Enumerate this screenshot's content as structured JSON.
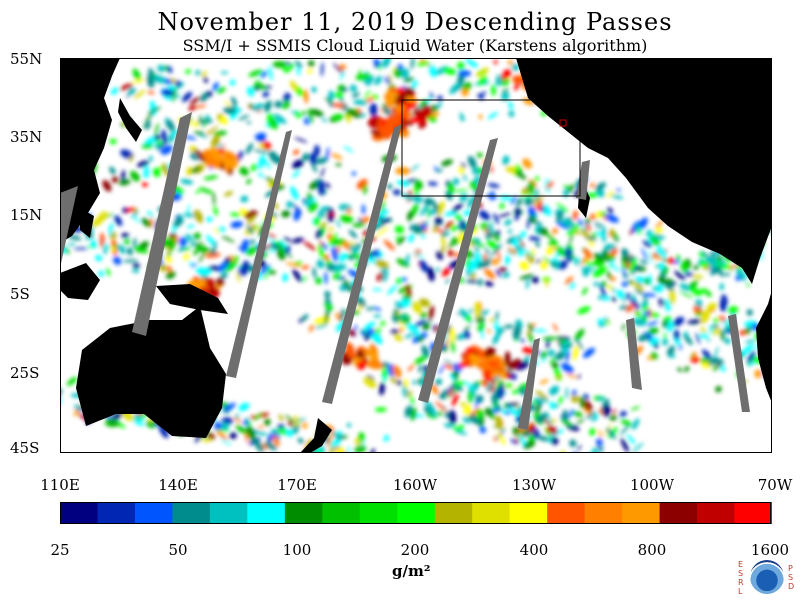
{
  "title": "November 11, 2019  Descending Passes",
  "subtitle": "SSM/I + SSMIS Cloud Liquid Water (Karstens algorithm)",
  "lat_labels": [
    "55N",
    "35N",
    "15N",
    "5S",
    "25S",
    "45S"
  ],
  "lon_labels": [
    "110E",
    "140E",
    "170E",
    "160W",
    "130W",
    "100W",
    "70W"
  ],
  "colorbar": {
    "labels": [
      "25",
      "50",
      "100",
      "200",
      "400",
      "800",
      "1600"
    ],
    "units": "g/m²",
    "colors": [
      "#000080",
      "#0026b3",
      "#0055ff",
      "#008c8c",
      "#00c0c0",
      "#00ffff",
      "#008c00",
      "#00c000",
      "#00e000",
      "#00ff00",
      "#b3b300",
      "#e0e000",
      "#ffff00",
      "#ff5500",
      "#ff8000",
      "#ff9900",
      "#8c0000",
      "#c00000",
      "#ff0000"
    ]
  },
  "logo": {
    "name": "noaa-esrl-psd-logo",
    "left_text": "ESRL",
    "right_text": "PSD"
  },
  "colors": {
    "land": "#000000",
    "ocean_clear": "#ffffff",
    "no_data": "#6e6e6e",
    "box": "#000000"
  }
}
